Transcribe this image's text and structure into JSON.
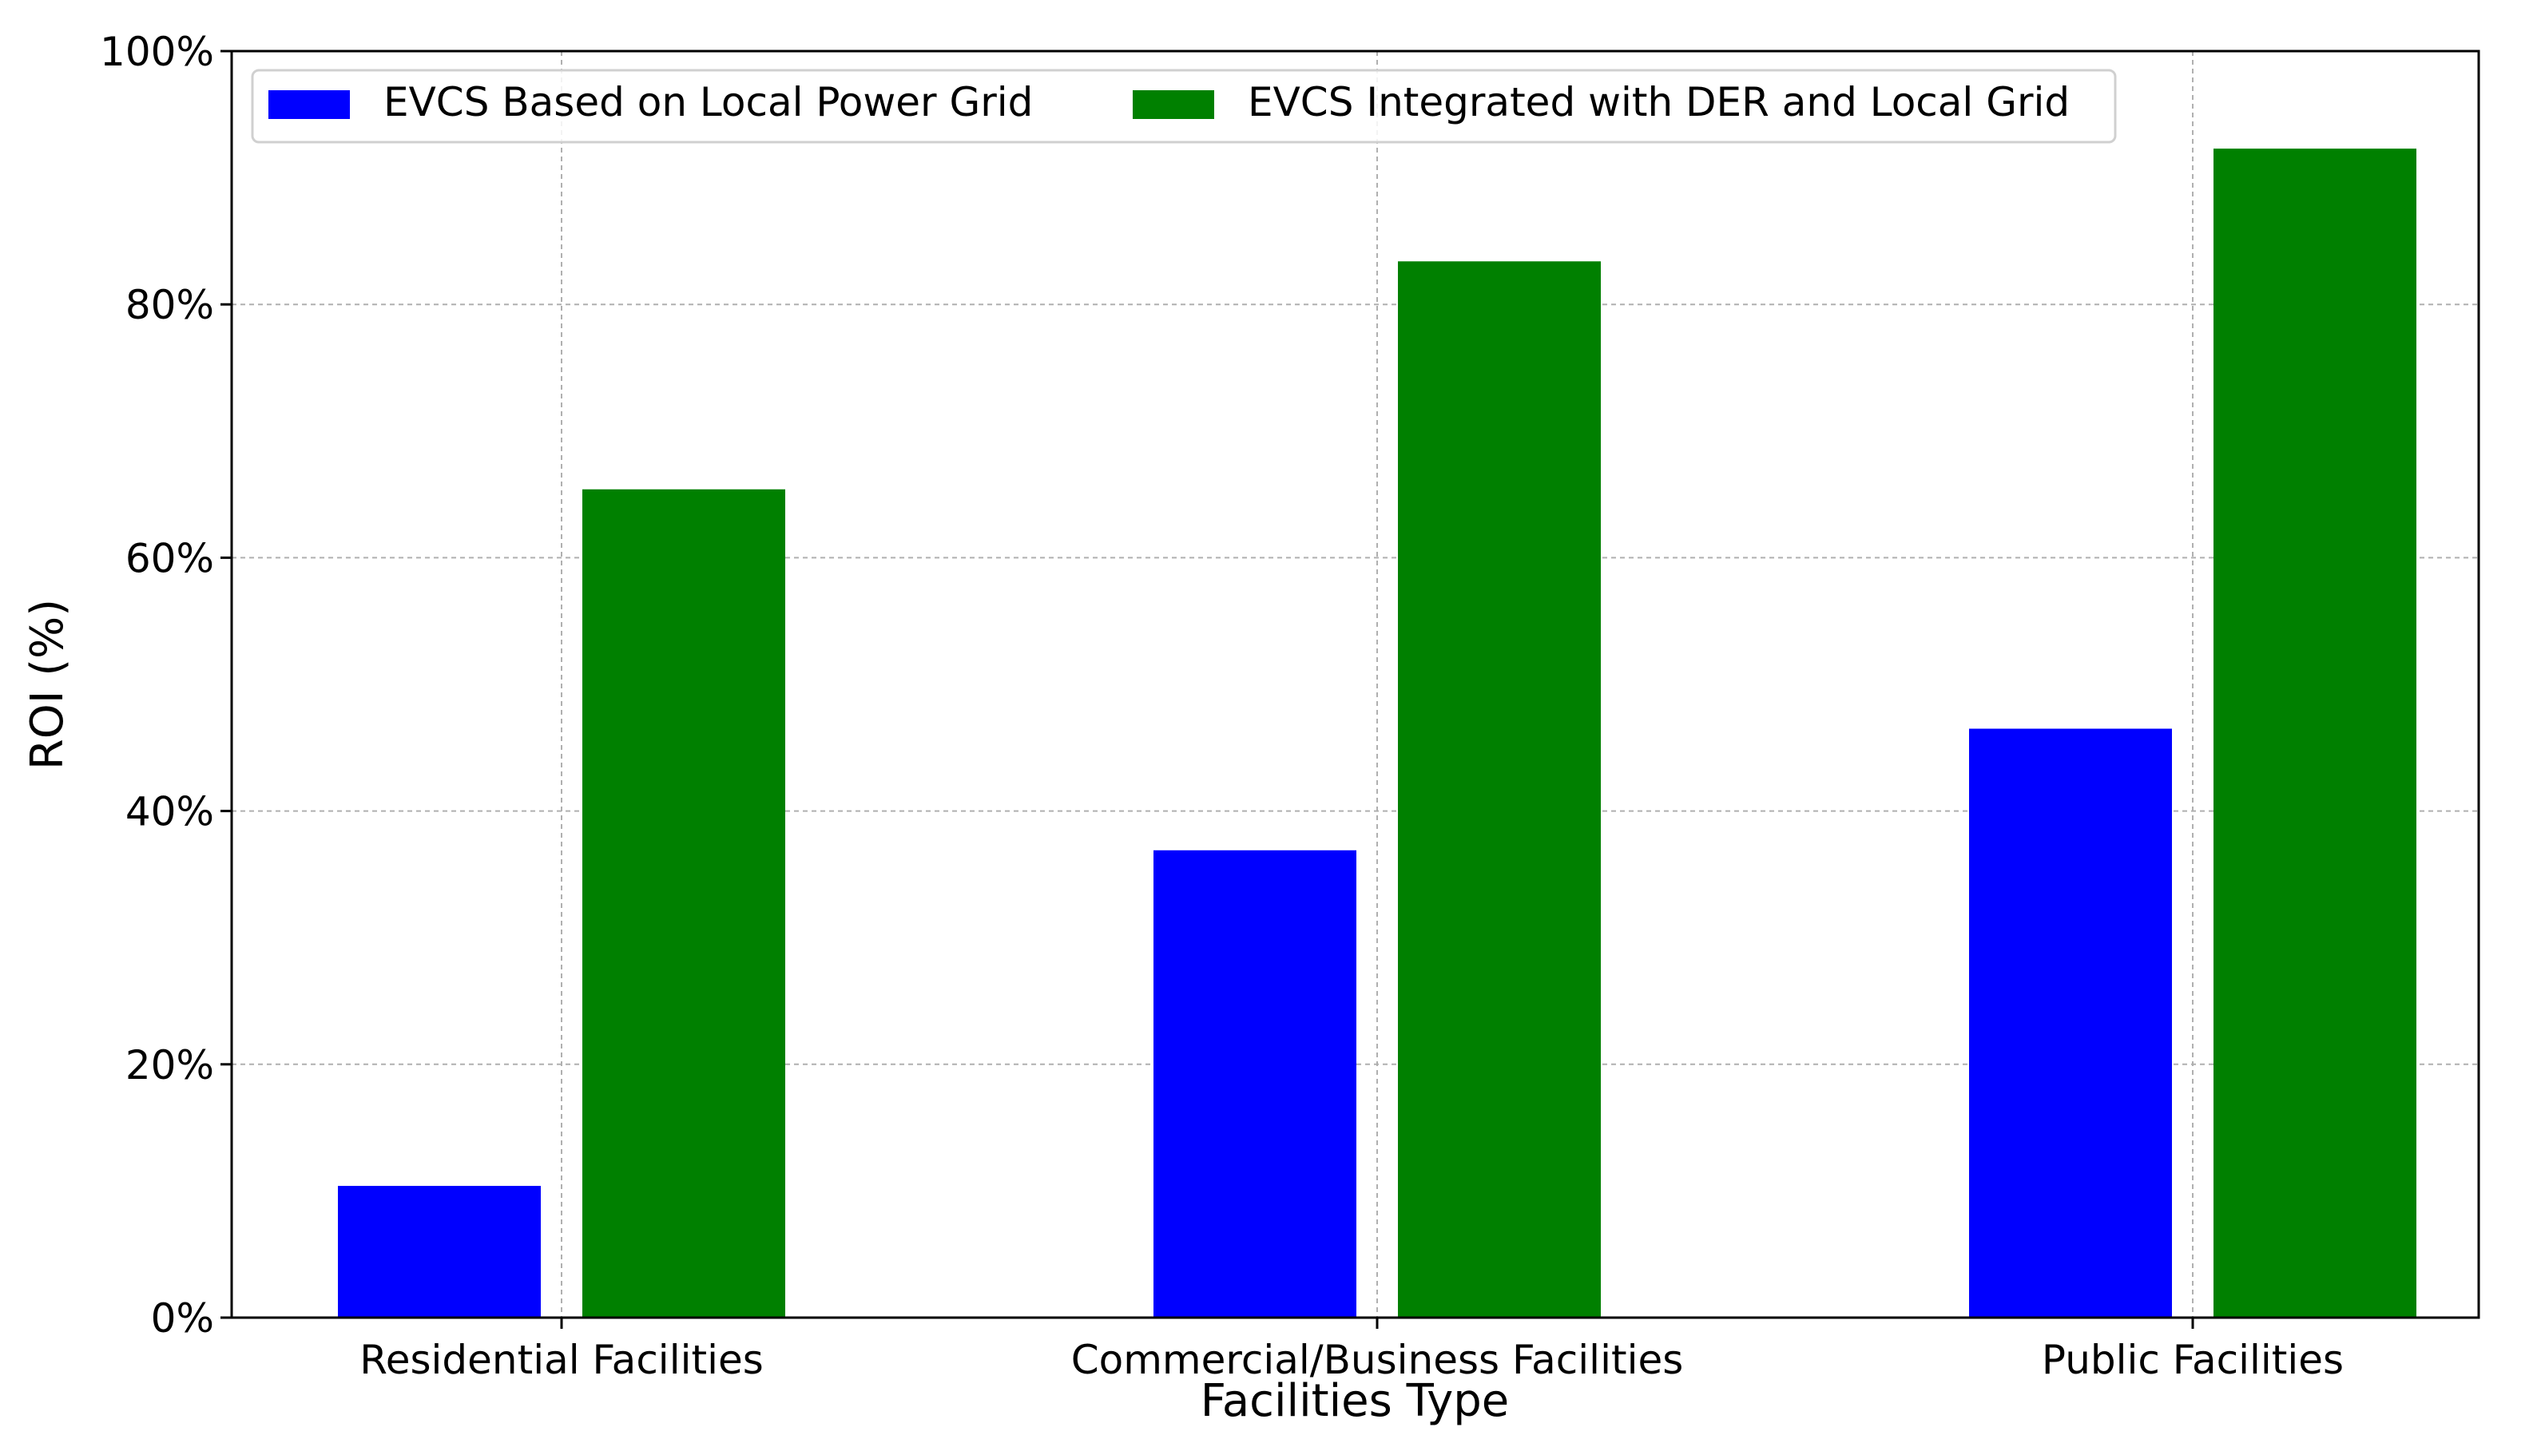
{
  "chart_data": {
    "type": "bar",
    "title": "",
    "xlabel": "Facilities Type",
    "ylabel": "ROI (%)",
    "categories": [
      "Residential Facilities",
      "Commercial/Business Facilities",
      "Public Facilities"
    ],
    "series": [
      {
        "name": "EVCS Based on Local Power Grid",
        "color": "#0000ff",
        "values": [
          10.4,
          36.9,
          46.5
        ]
      },
      {
        "name": "EVCS Integrated with DER and Local Grid",
        "color": "#008000",
        "values": [
          65.4,
          83.4,
          92.3
        ]
      }
    ],
    "ylim": [
      0,
      100
    ],
    "yticks": [
      0,
      20,
      40,
      60,
      80,
      100
    ],
    "ytick_labels": [
      "0%",
      "20%",
      "40%",
      "60%",
      "80%",
      "100%"
    ],
    "grid": true,
    "legend_position": "top-left"
  }
}
